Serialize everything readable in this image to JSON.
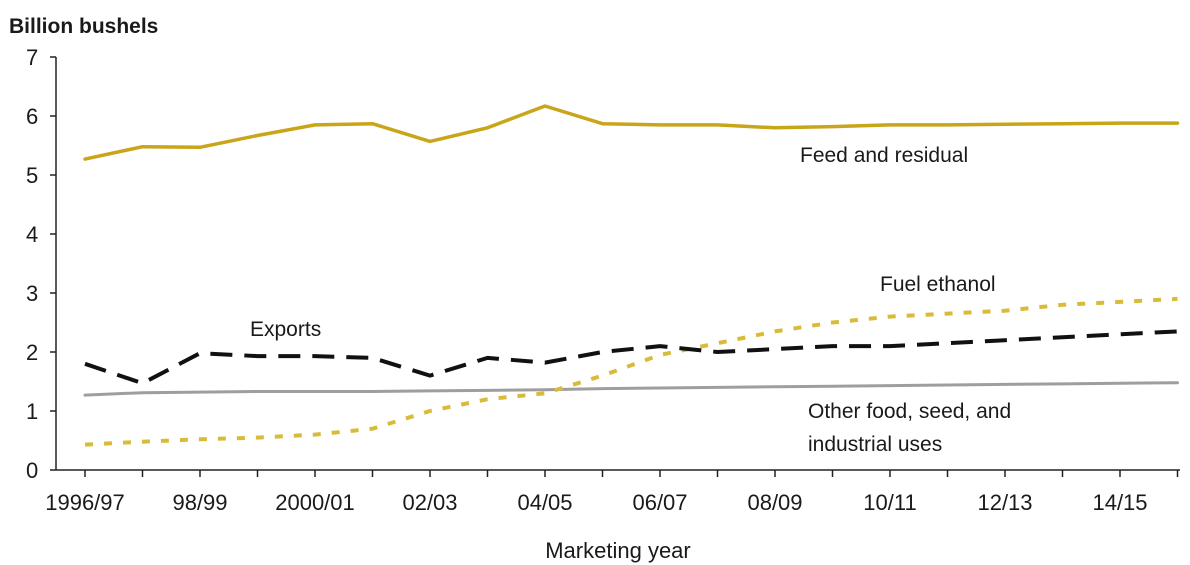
{
  "chart_data": {
    "type": "line",
    "ylabel": "Billion bushels",
    "xlabel": "Marketing year",
    "ylim": [
      0,
      7
    ],
    "yticks": [
      "0",
      "1",
      "2",
      "3",
      "4",
      "5",
      "6",
      "7"
    ],
    "xtick_labels": [
      "1996/97",
      "98/99",
      "2000/01",
      "02/03",
      "04/05",
      "06/07",
      "08/09",
      "10/11",
      "12/13",
      "14/15"
    ],
    "x": [
      "1996/97",
      "1997/98",
      "1998/99",
      "1999/00",
      "2000/01",
      "2001/02",
      "2002/03",
      "2003/04",
      "2004/05",
      "2005/06",
      "2006/07",
      "2007/08",
      "2008/09",
      "2009/10",
      "2010/11",
      "2011/12",
      "2012/13",
      "2013/14",
      "2014/15",
      "2015/16"
    ],
    "series": [
      {
        "name": "Feed and residual",
        "style": "solid",
        "color": "#c9a51a",
        "values": [
          5.27,
          5.48,
          5.47,
          5.67,
          5.85,
          5.87,
          5.57,
          5.8,
          6.17,
          5.87,
          5.85,
          5.85,
          5.8,
          5.82,
          5.85,
          5.85,
          5.86,
          5.87,
          5.88,
          5.88
        ]
      },
      {
        "name": "Exports",
        "style": "dashed",
        "color": "#111111",
        "values": [
          1.8,
          1.47,
          1.98,
          1.93,
          1.93,
          1.9,
          1.6,
          1.9,
          1.82,
          2.0,
          2.1,
          2.0,
          2.05,
          2.1,
          2.1,
          2.15,
          2.2,
          2.25,
          2.3,
          2.35
        ]
      },
      {
        "name": "Fuel ethanol",
        "style": "dotted",
        "color": "#d9bb3a",
        "values": [
          0.43,
          0.48,
          0.52,
          0.55,
          0.6,
          0.7,
          1.0,
          1.2,
          1.3,
          1.6,
          1.95,
          2.15,
          2.35,
          2.5,
          2.6,
          2.65,
          2.7,
          2.8,
          2.85,
          2.9
        ]
      },
      {
        "name": "Other food, seed, and industrial uses",
        "style": "solid",
        "color": "#9e9e9e",
        "values": [
          1.27,
          1.31,
          1.32,
          1.33,
          1.33,
          1.33,
          1.34,
          1.35,
          1.36,
          1.38,
          1.39,
          1.4,
          1.41,
          1.42,
          1.43,
          1.44,
          1.45,
          1.46,
          1.47,
          1.48
        ]
      }
    ],
    "annotations": [
      {
        "text": "Feed and residual",
        "series": 0
      },
      {
        "text": "Fuel ethanol",
        "series": 2
      },
      {
        "text": "Exports",
        "series": 1
      },
      {
        "text": "Other food, seed, and",
        "series": 3
      },
      {
        "text": "industrial uses",
        "series": 3
      }
    ],
    "grid": false,
    "legend": "none"
  }
}
